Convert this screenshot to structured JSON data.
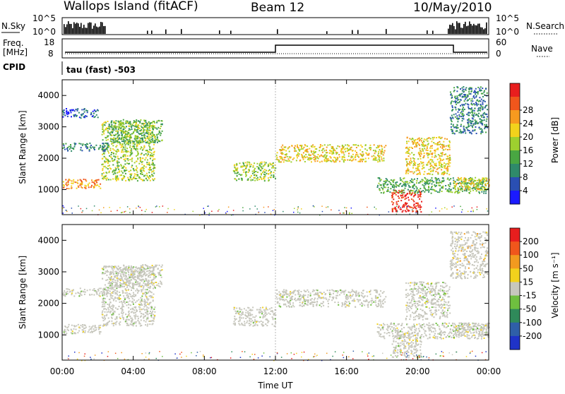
{
  "header": {
    "station": "Wallops Island (fitACF)",
    "beam": "Beam 12",
    "date": "10/May/2010"
  },
  "side_labels": {
    "nsky": "N.Sky",
    "nsearch": "N.Search",
    "freq_line1": "Freq.",
    "freq_line2": "[MHz]",
    "nave": "Nave",
    "cpid": "CPID",
    "cpid_value": "tau (fast) -503",
    "pow_left_top": "10^5",
    "pow_left_bottom": "10^0",
    "pow_right_top": "10^5",
    "pow_right_bottom": "10^0",
    "freq_left_top": "18",
    "freq_left_bottom": "8",
    "nave_right_top": "60",
    "nave_right_bottom": "0"
  },
  "chart_data": [
    {
      "type": "heatmap",
      "name": "power",
      "ylabel": "Slant Range [km]",
      "xlabel": "Time UT",
      "yticks": [
        "1000",
        "2000",
        "3000",
        "4000"
      ],
      "xticks": [
        "00:00",
        "04:00",
        "08:00",
        "12:00",
        "16:00",
        "20:00",
        "00:00"
      ],
      "ylim": [
        200,
        4500
      ],
      "xlim": [
        0,
        24
      ],
      "colorbar": {
        "label": "Power [dB]",
        "ticks": [
          "4",
          "8",
          "12",
          "16",
          "20",
          "24",
          "28"
        ],
        "colors": [
          "#1a1aff",
          "#2a4fb3",
          "#2f8a6a",
          "#49a642",
          "#9ecf2f",
          "#f2d21c",
          "#f79a1f",
          "#f0561c",
          "#e81e1e"
        ]
      },
      "bands": [
        {
          "t0": 0.0,
          "t1": 2.2,
          "r0": 1050,
          "r1": 1350,
          "level": 6
        },
        {
          "t0": 2.2,
          "t1": 5.2,
          "r0": 1300,
          "r1": 3200,
          "level": 4
        },
        {
          "t0": 0.0,
          "t1": 2.6,
          "r0": 2250,
          "r1": 2500,
          "level": 2
        },
        {
          "t0": 2.6,
          "t1": 5.6,
          "r0": 2500,
          "r1": 3250,
          "level": 3
        },
        {
          "t0": 0.0,
          "t1": 2.0,
          "r0": 3300,
          "r1": 3600,
          "level": 1
        },
        {
          "t0": 9.6,
          "t1": 12.0,
          "r0": 1300,
          "r1": 1900,
          "level": 4
        },
        {
          "t0": 12.0,
          "t1": 18.2,
          "r0": 1900,
          "r1": 2450,
          "level": 5
        },
        {
          "t0": 18.5,
          "t1": 20.2,
          "r0": 300,
          "r1": 1000,
          "level": 8
        },
        {
          "t0": 17.7,
          "t1": 24.0,
          "r0": 900,
          "r1": 1400,
          "level": 3
        },
        {
          "t0": 19.3,
          "t1": 21.8,
          "r0": 1500,
          "r1": 2700,
          "level": 5
        },
        {
          "t0": 22.0,
          "t1": 24.0,
          "r0": 1000,
          "r1": 1400,
          "level": 5
        },
        {
          "t0": 21.8,
          "t1": 23.9,
          "r0": 2800,
          "r1": 4300,
          "level": 2
        }
      ]
    },
    {
      "type": "heatmap",
      "name": "velocity",
      "ylabel": "Slant Range [km]",
      "xlabel": "Time UT",
      "yticks": [
        "1000",
        "2000",
        "3000",
        "4000"
      ],
      "xticks": [
        "00:00",
        "04:00",
        "08:00",
        "12:00",
        "16:00",
        "20:00",
        "00:00"
      ],
      "ylim": [
        200,
        4500
      ],
      "xlim": [
        0,
        24
      ],
      "colorbar": {
        "label": "Velocity [m s⁻¹]",
        "ticks": [
          "200",
          "100",
          "50",
          "15",
          "-15",
          "-50",
          "-100",
          "-200"
        ],
        "colors": [
          "#1f33c8",
          "#2f5fa8",
          "#2f8a5a",
          "#6fbf3f",
          "#c7c7bd",
          "#f2d21c",
          "#f29a1f",
          "#f0561c",
          "#e81e1e"
        ]
      },
      "bands": [
        {
          "t0": 0.0,
          "t1": 2.2,
          "r0": 1050,
          "r1": 1350,
          "level": 4
        },
        {
          "t0": 2.2,
          "t1": 5.2,
          "r0": 1300,
          "r1": 3200,
          "level": 4
        },
        {
          "t0": 0.0,
          "t1": 2.6,
          "r0": 2250,
          "r1": 2500,
          "level": 4
        },
        {
          "t0": 2.6,
          "t1": 5.6,
          "r0": 2500,
          "r1": 3250,
          "level": 4
        },
        {
          "t0": 9.6,
          "t1": 12.0,
          "r0": 1300,
          "r1": 1900,
          "level": 4
        },
        {
          "t0": 12.0,
          "t1": 18.2,
          "r0": 1900,
          "r1": 2450,
          "level": 4
        },
        {
          "t0": 18.5,
          "t1": 20.2,
          "r0": 300,
          "r1": 1100,
          "level": 4
        },
        {
          "t0": 17.7,
          "t1": 24.0,
          "r0": 900,
          "r1": 1400,
          "level": 4
        },
        {
          "t0": 19.3,
          "t1": 21.8,
          "r0": 1500,
          "r1": 2700,
          "level": 4
        },
        {
          "t0": 22.0,
          "t1": 24.0,
          "r0": 1000,
          "r1": 1400,
          "level": 4
        },
        {
          "t0": 21.8,
          "t1": 23.9,
          "r0": 2800,
          "r1": 4300,
          "level": 5
        }
      ]
    }
  ]
}
